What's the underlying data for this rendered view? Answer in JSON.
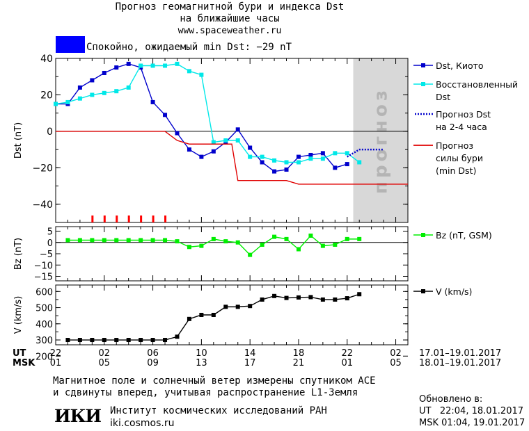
{
  "header": {
    "title_line1": "Прогноз геомагнитной бури и индекса Dst",
    "title_line2": "на ближайшие часы",
    "url": "www.spaceweather.ru",
    "status_color": "#0000ff",
    "status_text": "Спокойно, ожидаемый min Dst: −29 nT"
  },
  "time_axis": {
    "ut_label": "UT",
    "msk_label": "MSK",
    "ut_ticks": [
      "22",
      "02",
      "06",
      "10",
      "14",
      "18",
      "22",
      "02"
    ],
    "msk_ticks": [
      "01",
      "05",
      "09",
      "13",
      "17",
      "21",
      "01",
      "05"
    ],
    "ut_range": "17.01–19.01.2017",
    "msk_range": "18.01–19.01.2017"
  },
  "forecast_band_label": "прогноз",
  "chart_data": [
    {
      "type": "line",
      "ylabel": "Dst (nT)",
      "ylim": [
        -50,
        40
      ],
      "yticks": [
        40,
        20,
        0,
        -20,
        -40
      ],
      "x_unit": "hours since 22 UT 17.01.2017",
      "xlim": [
        -1,
        28
      ],
      "forecast_region_x": [
        23.5,
        28
      ],
      "storm_markers_x": [
        2,
        3,
        4,
        5,
        6,
        7,
        8
      ],
      "series": [
        {
          "name": "Dst, Киото",
          "color": "#0000cc",
          "marker": "square",
          "x": [
            -1,
            0,
            1,
            2,
            3,
            4,
            5,
            6,
            7,
            8,
            9,
            10,
            11,
            12,
            13,
            14,
            15,
            16,
            17,
            18,
            19,
            20,
            21,
            22,
            23
          ],
          "y": [
            15,
            15,
            24,
            28,
            32,
            35,
            37,
            35,
            16,
            9,
            -1,
            -10,
            -14,
            -11,
            -6,
            1,
            -9,
            -17,
            -22,
            -21,
            -14,
            -13,
            -12,
            -20,
            -18
          ]
        },
        {
          "name": "Восстановленный Dst",
          "color": "#00e8e8",
          "marker": "square",
          "x": [
            -1,
            0,
            1,
            2,
            3,
            4,
            5,
            6,
            7,
            8,
            9,
            10,
            11,
            12,
            13,
            14,
            15,
            16,
            17,
            18,
            19,
            20,
            21,
            22,
            23,
            24
          ],
          "y": [
            15,
            16,
            18,
            20,
            21,
            22,
            24,
            36,
            36,
            36,
            37,
            33,
            31,
            -6,
            -5,
            -5,
            -14,
            -14,
            -16,
            -17,
            -17,
            -15,
            -15,
            -12,
            -12,
            -17
          ]
        },
        {
          "name": "Прогноз Dst на 2–4 часа",
          "color": "#0000cc",
          "dash": true,
          "x": [
            23,
            24,
            26
          ],
          "y": [
            -14,
            -10,
            -10
          ]
        },
        {
          "name": "Прогноз силы бури (min Dst)",
          "color": "#e00000",
          "x": [
            -1,
            8,
            9,
            10,
            12,
            13.5,
            14,
            18,
            19,
            28
          ],
          "y": [
            0,
            0,
            -5,
            -7,
            -7,
            -7,
            -27,
            -27,
            -29,
            -29
          ]
        }
      ],
      "legend": [
        "Dst, Киото",
        "Восстановленный",
        "Dst",
        "Прогноз Dst",
        "на 2-4 часа",
        "Прогноз",
        "силы бури",
        "(min Dst)"
      ]
    },
    {
      "type": "line",
      "ylabel": "Bz (nT)",
      "ylim": [
        -17,
        7
      ],
      "yticks": [
        5,
        0,
        -5,
        -10,
        -15
      ],
      "series": [
        {
          "name": "Bz (nT, GSM)",
          "color": "#00ee00",
          "marker": "square",
          "x": [
            0,
            1,
            2,
            3,
            4,
            5,
            6,
            7,
            8,
            9,
            10,
            11,
            12,
            13,
            14,
            15,
            16,
            17,
            18,
            19,
            20,
            21,
            22,
            23,
            24
          ],
          "y": [
            1,
            1,
            1,
            1,
            1,
            1,
            1,
            1,
            1,
            0.5,
            -2,
            -1.5,
            1.5,
            0.5,
            0,
            -5.5,
            -1,
            2.5,
            1.5,
            -3,
            3,
            -1.5,
            -1,
            1.5,
            1.5
          ]
        }
      ],
      "legend": [
        "Bz (nT, GSM)"
      ]
    },
    {
      "type": "line",
      "ylabel": "V (km/s)",
      "ylim": [
        270,
        640
      ],
      "yticks": [
        600,
        500,
        400,
        300,
        200
      ],
      "series": [
        {
          "name": "V (km/s)",
          "color": "#000000",
          "marker": "square",
          "x": [
            0,
            1,
            2,
            3,
            4,
            5,
            6,
            7,
            8,
            9,
            10,
            11,
            12,
            13,
            14,
            15,
            16,
            17,
            18,
            19,
            20,
            21,
            22,
            23,
            24
          ],
          "y": [
            300,
            300,
            300,
            300,
            300,
            300,
            300,
            300,
            300,
            320,
            430,
            455,
            455,
            505,
            505,
            510,
            550,
            572,
            560,
            563,
            565,
            550,
            550,
            558,
            583
          ]
        }
      ],
      "legend": [
        "V (km/s)"
      ]
    }
  ],
  "footer": {
    "note_line1": "Магнитное поле и солнечный ветер измерены спутником ACE",
    "note_line2": "и сдвинуты вперед, учитывая распространение L1-Земля",
    "logo_text": "ИКИ",
    "institute": "Институт космических исследований РАН",
    "institute_url": "iki.cosmos.ru",
    "updated_label": "Обновлено в:",
    "updated_ut": "UT   22:04, 18.01.2017",
    "updated_msk": "MSK 01:04, 19.01.2017"
  }
}
